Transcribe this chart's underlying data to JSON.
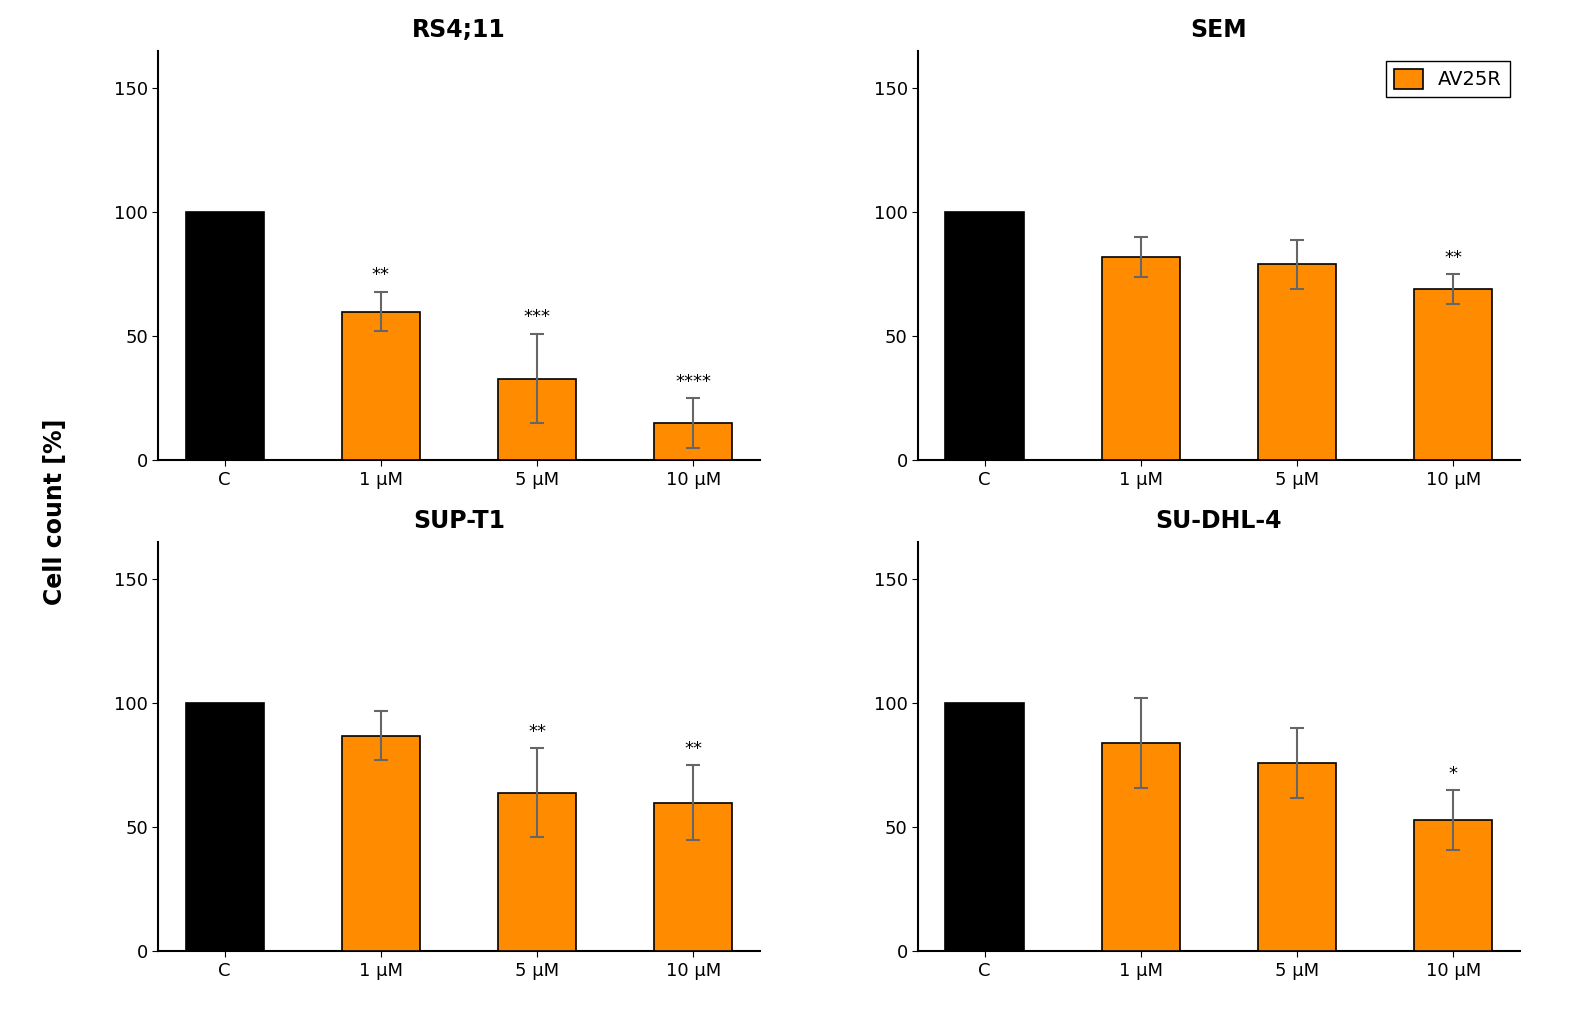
{
  "subplots": [
    {
      "title": "RS4;11",
      "categories": [
        "C",
        "1 μM",
        "5 μM",
        "10 μM"
      ],
      "values": [
        100,
        60,
        33,
        15
      ],
      "errors": [
        0,
        8,
        18,
        10
      ],
      "bar_colors": [
        "#000000",
        "#FF8C00",
        "#FF8C00",
        "#FF8C00"
      ],
      "significance": [
        "",
        "**",
        "***",
        "****"
      ],
      "ylim": [
        0,
        165
      ],
      "yticks": [
        0,
        50,
        100,
        150
      ]
    },
    {
      "title": "SEM",
      "categories": [
        "C",
        "1 μM",
        "5 μM",
        "10 μM"
      ],
      "values": [
        100,
        82,
        79,
        69
      ],
      "errors": [
        0,
        8,
        10,
        6
      ],
      "bar_colors": [
        "#000000",
        "#FF8C00",
        "#FF8C00",
        "#FF8C00"
      ],
      "significance": [
        "",
        "",
        "",
        "**"
      ],
      "ylim": [
        0,
        165
      ],
      "yticks": [
        0,
        50,
        100,
        150
      ],
      "show_legend": true
    },
    {
      "title": "SUP-T1",
      "categories": [
        "C",
        "1 μM",
        "5 μM",
        "10 μM"
      ],
      "values": [
        100,
        87,
        64,
        60
      ],
      "errors": [
        0,
        10,
        18,
        15
      ],
      "bar_colors": [
        "#000000",
        "#FF8C00",
        "#FF8C00",
        "#FF8C00"
      ],
      "significance": [
        "",
        "",
        "**",
        "**"
      ],
      "ylim": [
        0,
        165
      ],
      "yticks": [
        0,
        50,
        100,
        150
      ]
    },
    {
      "title": "SU-DHL-4",
      "categories": [
        "C",
        "1 μM",
        "5 μM",
        "10 μM"
      ],
      "values": [
        100,
        84,
        76,
        53
      ],
      "errors": [
        0,
        18,
        14,
        12
      ],
      "bar_colors": [
        "#000000",
        "#FF8C00",
        "#FF8C00",
        "#FF8C00"
      ],
      "significance": [
        "",
        "",
        "",
        "*"
      ],
      "ylim": [
        0,
        165
      ],
      "yticks": [
        0,
        50,
        100,
        150
      ]
    }
  ],
  "ylabel": "Cell count [%]",
  "legend_label": "AV25R",
  "legend_color": "#FF8C00",
  "background_color": "#ffffff",
  "title_fontsize": 17,
  "label_fontsize": 15,
  "tick_fontsize": 13,
  "sig_fontsize": 13,
  "bar_width": 0.5,
  "bar_edgecolor": "#000000",
  "errorbar_color": "#666666",
  "errorbar_lw": 1.5,
  "errorbar_capsize": 5,
  "errorbar_capthick": 1.5
}
